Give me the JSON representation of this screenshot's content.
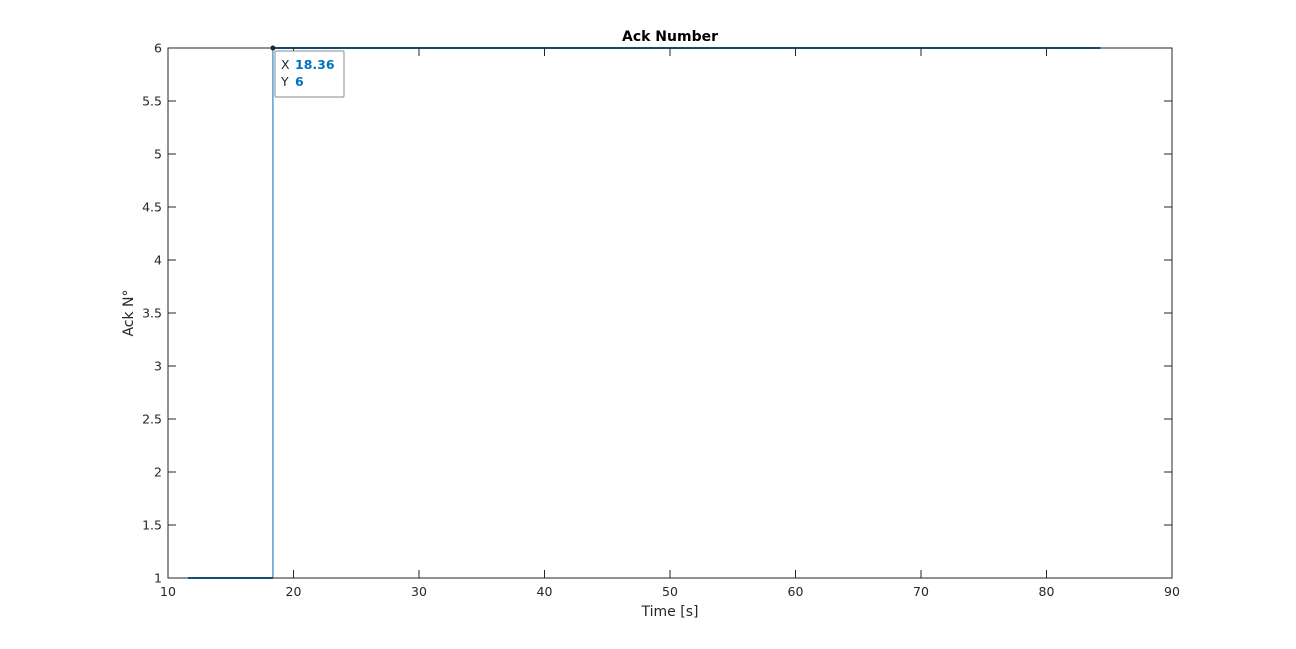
{
  "chart_data": {
    "type": "line",
    "title": "Ack Number",
    "xlabel": "Time [s]",
    "ylabel": "Ack N°",
    "xlim": [
      10,
      90
    ],
    "ylim": [
      1,
      6
    ],
    "xticks": [
      "10",
      "20",
      "30",
      "40",
      "50",
      "60",
      "70",
      "80",
      "90"
    ],
    "yticks": [
      "1",
      "1.5",
      "2",
      "2.5",
      "3",
      "3.5",
      "4",
      "4.5",
      "5",
      "5.5",
      "6"
    ],
    "grid": false,
    "series": [
      {
        "color": "#0072BD",
        "step": true,
        "x": [
          11.6,
          18.36,
          18.36,
          84.3
        ],
        "y": [
          1,
          1,
          6,
          6
        ]
      }
    ],
    "datatip": {
      "x_key": "X",
      "x_value": "18.36",
      "y_key": "Y",
      "y_value": "6",
      "point_x": 18.36,
      "point_y": 6,
      "value_color": "#0072BD"
    }
  }
}
